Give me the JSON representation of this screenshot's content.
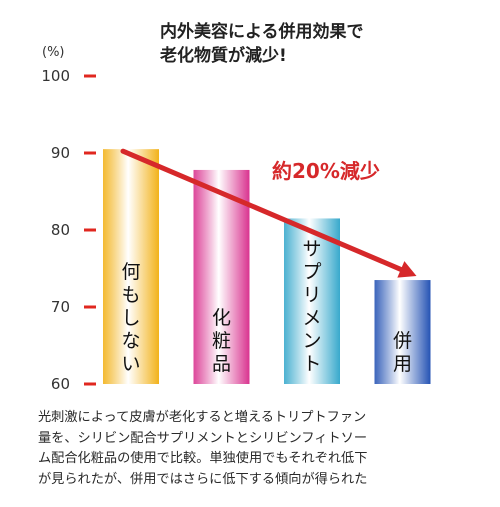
{
  "chart_data": {
    "type": "bar",
    "title_lines": [
      "内外美容による併用効果で",
      "老化物質が減少!"
    ],
    "ylabel": "(%)",
    "ylim": [
      60,
      100
    ],
    "yticks": [
      60,
      70,
      80,
      90,
      100
    ],
    "categories": [
      "何もしない",
      "化粧品",
      "サプリメント",
      "併用"
    ],
    "values": [
      90.5,
      87.8,
      81.5,
      73.5
    ],
    "colors": {
      "何もしない": "#f2b21a",
      "化粧品": "#d9338f",
      "サプリメント": "#38a9cc",
      "併用": "#2553b4",
      "arrow": "#d6282a",
      "tick": "#e0271f"
    },
    "annotation": "約20%減少",
    "grid": false
  },
  "caption_lines": [
    "光刺激によって皮膚が老化すると増えるトリプトファン",
    "量を、シリビン配合サプリメントとシリビンフィトソー",
    "ム配合化粧品の使用で比較。単独使用でもそれぞれ低下",
    "が見られたが、併用ではさらに低下する傾向が得られた"
  ]
}
